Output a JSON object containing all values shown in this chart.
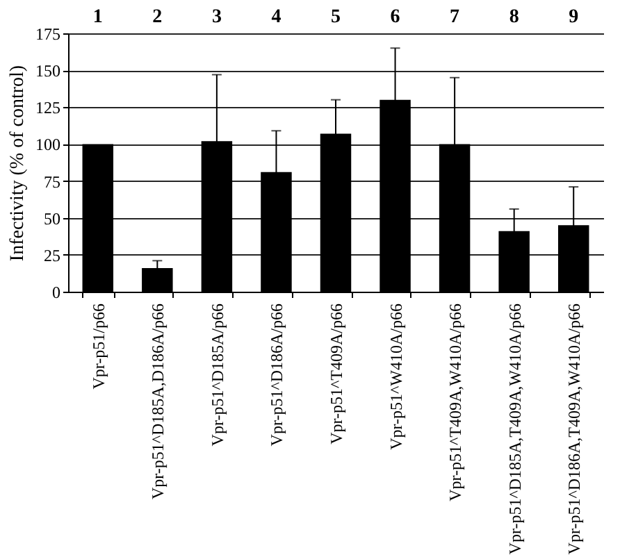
{
  "chart_data": {
    "type": "bar",
    "ylabel": "Infectivity (% of control)",
    "categories": [
      "Vpr-p51/p66",
      "Vpr-p51^D185A,D186A/p66",
      "Vpr-p51^D185A/p66",
      "Vpr-p51^D186A/p66",
      "Vpr-p51^T409A/p66",
      "Vpr-p51^W410A/p66",
      "Vpr-p51^T409A,W410A/p66",
      "Vpr-p51^D185A,T409A,W410A/p66",
      "Vpr-p51^D186A,T409A,W410A/p66"
    ],
    "values": [
      100,
      16,
      102,
      81,
      107,
      130,
      100,
      41,
      45
    ],
    "errors": [
      null,
      5,
      45,
      28,
      23,
      35,
      45,
      15,
      26
    ],
    "color": "#000000",
    "ylim": [
      0,
      175
    ],
    "yticks": [
      0,
      25,
      50,
      75,
      100,
      125,
      150,
      175
    ],
    "grid": "y",
    "annotations": [
      "1",
      "2",
      "3",
      "4",
      "5",
      "6",
      "7",
      "8",
      "9"
    ]
  }
}
